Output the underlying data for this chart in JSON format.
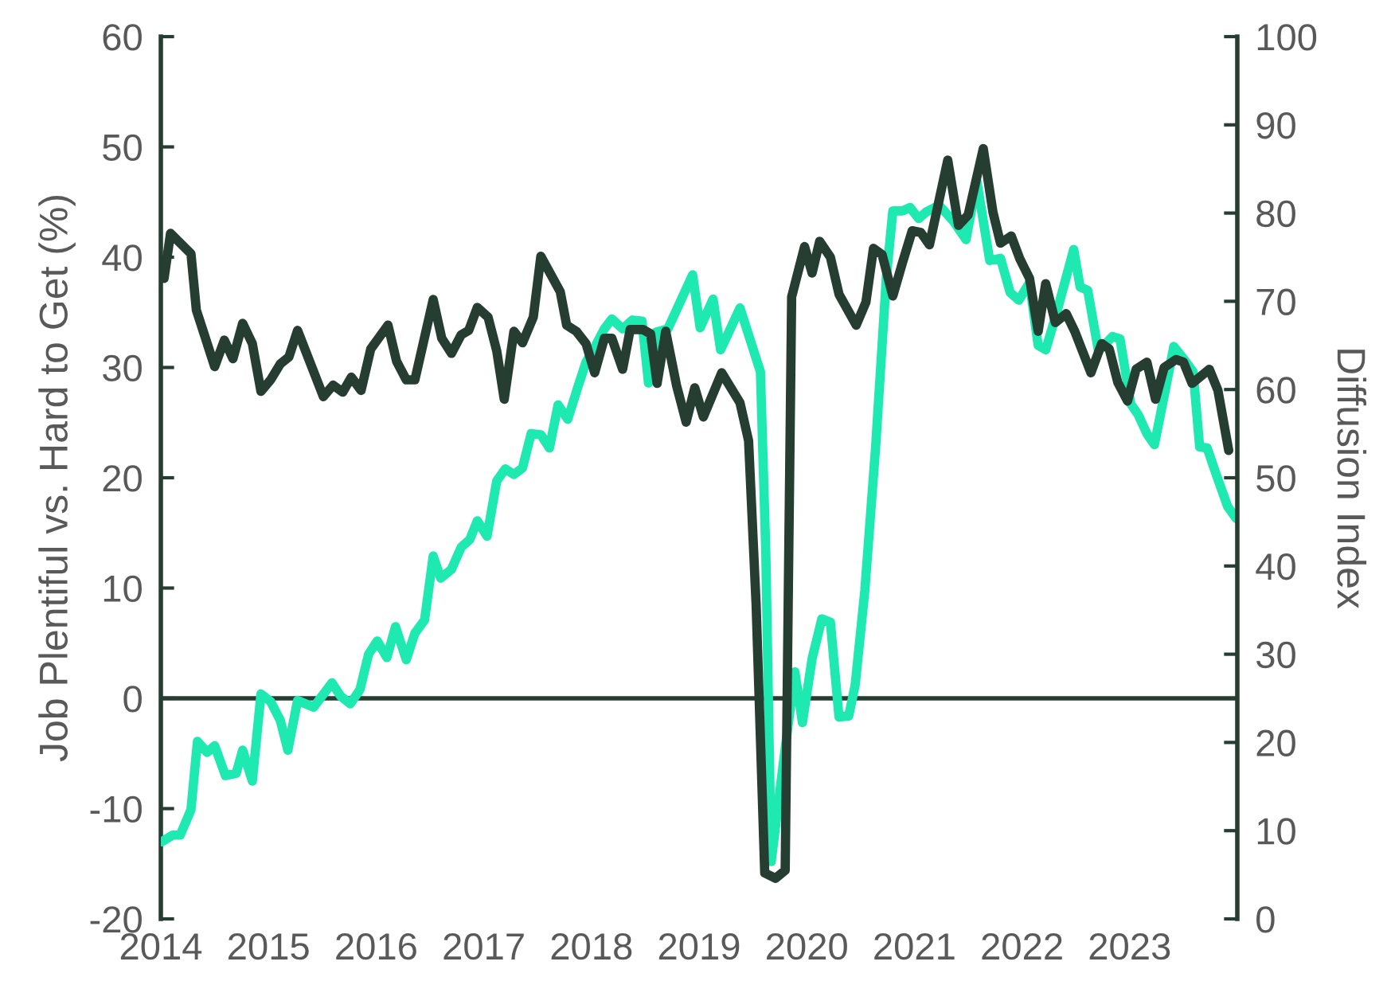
{
  "chart_data": {
    "type": "line",
    "ylabel": "Job Plentiful vs. Hard to Get (%)",
    "y2label": "Diffusion Index",
    "xlim": [
      2014,
      2024
    ],
    "xticks": [
      2014,
      2015,
      2016,
      2017,
      2018,
      2019,
      2020,
      2021,
      2022,
      2023
    ],
    "ylim": [
      -20,
      60
    ],
    "yticks": [
      -20,
      -10,
      0,
      10,
      20,
      30,
      40,
      50,
      60
    ],
    "y2lim": [
      0,
      100
    ],
    "y2ticks": [
      0,
      10,
      20,
      30,
      40,
      50,
      60,
      70,
      80,
      90,
      100
    ],
    "grid": false,
    "legend": false,
    "marker": "none",
    "line_style": "solid",
    "ref_lines": [
      {
        "axis": "y",
        "value": 0,
        "color": "#263d31",
        "line_style": "solid"
      }
    ],
    "series": [
      {
        "color": "#1de9b0",
        "axis": "y",
        "x": [
          2014.01,
          2014.11,
          2014.18,
          2014.28,
          2014.34,
          2014.43,
          2014.5,
          2014.6,
          2014.7,
          2014.76,
          2014.85,
          2014.93,
          2015.02,
          2015.11,
          2015.18,
          2015.27,
          2015.42,
          2015.59,
          2015.67,
          2015.76,
          2015.85,
          2015.93,
          2016.01,
          2016.1,
          2016.18,
          2016.28,
          2016.36,
          2016.45,
          2016.53,
          2016.6,
          2016.7,
          2016.79,
          2016.87,
          2016.94,
          2017.03,
          2017.12,
          2017.2,
          2017.28,
          2017.36,
          2017.44,
          2017.53,
          2017.61,
          2017.69,
          2017.78,
          2017.87,
          2017.95,
          2018.04,
          2018.12,
          2018.19,
          2018.29,
          2018.38,
          2018.47,
          2018.53,
          2018.6,
          2018.71,
          2018.94,
          2019.01,
          2019.13,
          2019.2,
          2019.38,
          2019.57,
          2019.62,
          2019.67,
          2019.78,
          2019.89,
          2019.96,
          2020.05,
          2020.14,
          2020.22,
          2020.3,
          2020.39,
          2020.45,
          2020.54,
          2020.64,
          2020.74,
          2020.8,
          2020.89,
          2020.96,
          2021.04,
          2021.11,
          2021.23,
          2021.36,
          2021.48,
          2021.58,
          2021.7,
          2021.8,
          2021.89,
          2021.97,
          2022.07,
          2022.15,
          2022.22,
          2022.32,
          2022.48,
          2022.54,
          2022.61,
          2022.71,
          2022.84,
          2022.91,
          2023.01,
          2023.08,
          2023.16,
          2023.23,
          2023.33,
          2023.41,
          2023.5,
          2023.59,
          2023.65,
          2023.72,
          2023.8,
          2023.91,
          2023.99
        ],
        "values": [
          -13.0,
          -12.4,
          -12.4,
          -10.1,
          -3.9,
          -4.9,
          -4.3,
          -7.0,
          -6.8,
          -4.7,
          -7.5,
          0.4,
          -0.3,
          -2.0,
          -4.7,
          -0.2,
          -0.8,
          1.4,
          0.2,
          -0.5,
          0.8,
          4.0,
          5.2,
          3.7,
          6.5,
          3.5,
          5.9,
          7.1,
          12.9,
          10.9,
          11.7,
          13.7,
          14.4,
          16.1,
          14.7,
          19.7,
          20.8,
          20.3,
          20.9,
          24.0,
          23.9,
          22.7,
          26.6,
          25.3,
          28.1,
          30.5,
          32.0,
          33.5,
          34.4,
          33.5,
          34.3,
          34.2,
          28.6,
          33.2,
          33.5,
          38.4,
          33.6,
          36.2,
          31.6,
          35.4,
          29.6,
          13.2,
          -14.8,
          -6.1,
          2.4,
          -2.2,
          3.6,
          7.2,
          6.9,
          -1.7,
          -1.6,
          1.2,
          9.8,
          22.8,
          38.2,
          44.2,
          44.2,
          44.5,
          43.5,
          44.1,
          44.7,
          43.3,
          41.6,
          46.9,
          39.7,
          39.9,
          36.8,
          36.1,
          37.7,
          32.0,
          31.6,
          34.9,
          40.7,
          37.3,
          37.0,
          31.5,
          32.8,
          32.6,
          26.7,
          25.7,
          24.0,
          23.0,
          27.9,
          31.9,
          30.8,
          29.6,
          22.8,
          22.7,
          20.4,
          17.4,
          16.3
        ]
      },
      {
        "color": "#263d31",
        "axis": "y2",
        "x": [
          2014.03,
          2014.09,
          2014.28,
          2014.33,
          2014.5,
          2014.59,
          2014.67,
          2014.76,
          2014.85,
          2014.93,
          2015.02,
          2015.11,
          2015.19,
          2015.27,
          2015.51,
          2015.6,
          2015.69,
          2015.77,
          2015.86,
          2015.95,
          2016.11,
          2016.19,
          2016.28,
          2016.36,
          2016.53,
          2016.61,
          2016.7,
          2016.79,
          2016.86,
          2016.94,
          2017.04,
          2017.12,
          2017.19,
          2017.28,
          2017.36,
          2017.46,
          2017.53,
          2017.71,
          2017.77,
          2017.86,
          2017.95,
          2018.03,
          2018.12,
          2018.19,
          2018.29,
          2018.36,
          2018.48,
          2018.55,
          2018.61,
          2018.69,
          2018.79,
          2018.88,
          2018.96,
          2019.04,
          2019.21,
          2019.38,
          2019.46,
          2019.53,
          2019.61,
          2019.71,
          2019.8,
          2019.86,
          2019.98,
          2020.05,
          2020.12,
          2020.22,
          2020.3,
          2020.46,
          2020.55,
          2020.62,
          2020.7,
          2020.8,
          2020.89,
          2020.98,
          2021.06,
          2021.14,
          2021.31,
          2021.41,
          2021.5,
          2021.64,
          2021.73,
          2021.8,
          2021.9,
          2021.98,
          2022.07,
          2022.15,
          2022.22,
          2022.31,
          2022.41,
          2022.49,
          2022.64,
          2022.74,
          2022.81,
          2022.89,
          2022.98,
          2023.06,
          2023.16,
          2023.24,
          2023.32,
          2023.43,
          2023.5,
          2023.58,
          2023.74,
          2023.82,
          2023.92
        ],
        "values": [
          72.6,
          77.7,
          75.4,
          69.0,
          62.6,
          65.6,
          63.5,
          67.5,
          65.2,
          59.8,
          61.1,
          62.9,
          63.7,
          66.7,
          59.2,
          60.5,
          59.7,
          61.4,
          59.9,
          64.6,
          67.3,
          63.2,
          61.1,
          61.1,
          70.2,
          65.8,
          64.1,
          66.2,
          66.7,
          69.3,
          68.2,
          64.4,
          58.9,
          66.6,
          65.3,
          68.2,
          75.1,
          71.1,
          67.3,
          66.6,
          65.2,
          61.9,
          65.8,
          65.8,
          62.3,
          66.8,
          66.8,
          66.3,
          60.7,
          66.6,
          60.5,
          56.3,
          60.2,
          56.9,
          61.9,
          58.5,
          54.2,
          35.6,
          5.2,
          4.6,
          5.5,
          70.5,
          76.2,
          73.2,
          76.8,
          75.0,
          70.8,
          67.3,
          69.9,
          76.0,
          75.3,
          70.6,
          74.4,
          78.0,
          77.8,
          76.4,
          86.0,
          78.6,
          79.8,
          87.3,
          80.1,
          76.6,
          77.4,
          74.8,
          72.6,
          66.6,
          72.0,
          67.6,
          68.6,
          66.6,
          61.9,
          65.2,
          64.6,
          60.8,
          58.7,
          62.3,
          63.1,
          58.9,
          62.5,
          63.4,
          63.1,
          60.7,
          62.3,
          59.9,
          53.1
        ]
      }
    ]
  }
}
